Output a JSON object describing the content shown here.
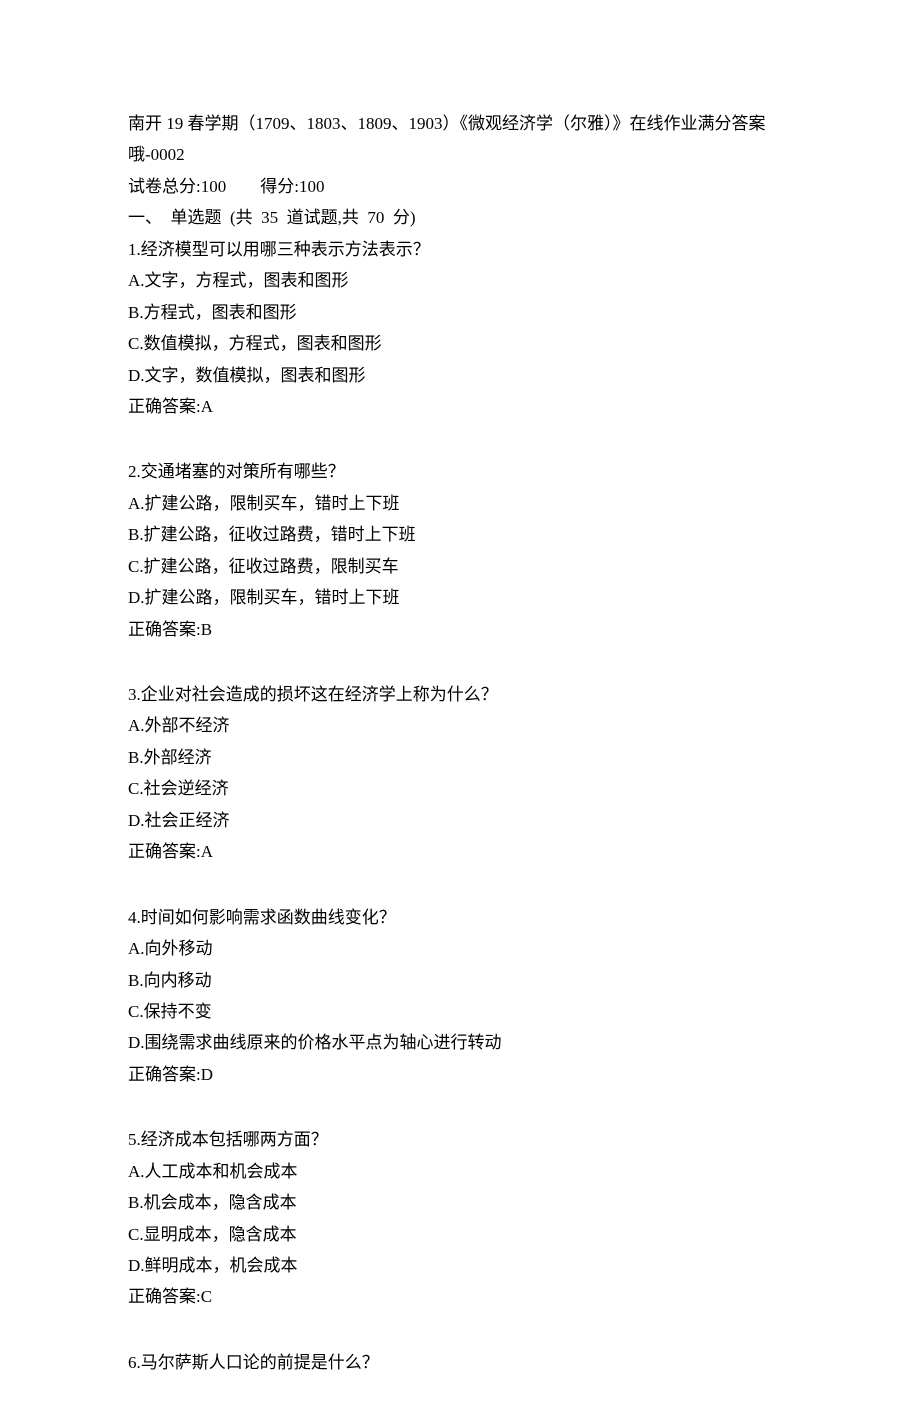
{
  "header": {
    "title_line": "南开 19 春学期（1709、1803、1809、1903）《微观经济学（尔雅）》在线作业满分答案哦-0002",
    "score_line": "试卷总分:100        得分:100",
    "section_line": "一、  单选题  (共  35  道试题,共  70  分)"
  },
  "questions": [
    {
      "stem": "1.经济模型可以用哪三种表示方法表示？",
      "options": [
        "A.文字，方程式，图表和图形",
        "B.方程式，图表和图形",
        "C.数值模拟，方程式，图表和图形",
        "D.文字，数值模拟，图表和图形"
      ],
      "answer": "正确答案:A"
    },
    {
      "stem": "2.交通堵塞的对策所有哪些？",
      "options": [
        "A.扩建公路，限制买车，错时上下班",
        "B.扩建公路，征收过路费，错时上下班",
        "C.扩建公路，征收过路费，限制买车",
        "D.扩建公路，限制买车，错时上下班"
      ],
      "answer": "正确答案:B"
    },
    {
      "stem": "3.企业对社会造成的损坏这在经济学上称为什么？",
      "options": [
        "A.外部不经济",
        "B.外部经济",
        "C.社会逆经济",
        "D.社会正经济"
      ],
      "answer": "正确答案:A"
    },
    {
      "stem": "4.时间如何影响需求函数曲线变化？",
      "options": [
        "A.向外移动",
        "B.向内移动",
        "C.保持不变",
        "D.围绕需求曲线原来的价格水平点为轴心进行转动"
      ],
      "answer": "正确答案:D"
    },
    {
      "stem": "5.经济成本包括哪两方面？",
      "options": [
        "A.人工成本和机会成本",
        "B.机会成本，隐含成本",
        "C.显明成本，隐含成本",
        "D.鲜明成本，机会成本"
      ],
      "answer": "正确答案:C"
    },
    {
      "stem": "6.马尔萨斯人口论的前提是什么？",
      "options": [],
      "answer": ""
    }
  ]
}
